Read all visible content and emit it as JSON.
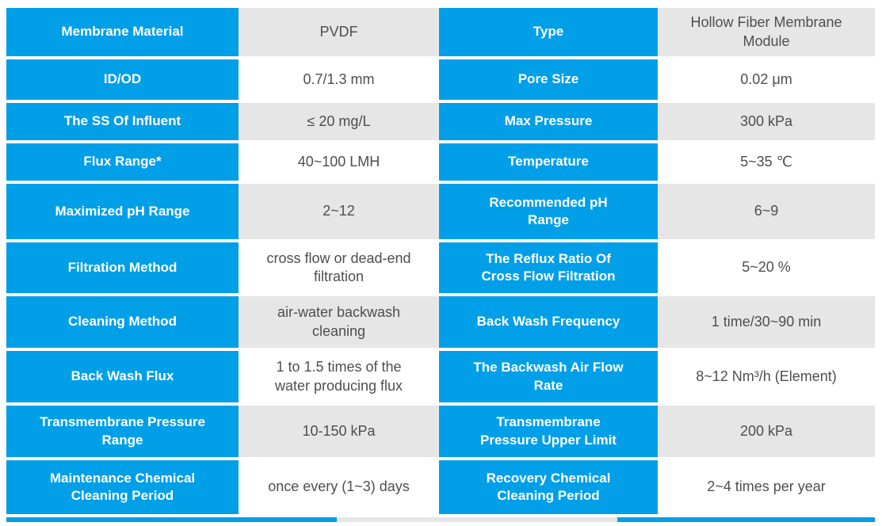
{
  "colors": {
    "header_bg": "#019FE8",
    "header_text": "#FFFFFF",
    "alt_value_bg": "#E6E6E6",
    "value_bg": "#FFFFFF",
    "value_text": "#4E4E51",
    "row_gap": "#FFFFFF"
  },
  "rows": [
    [
      "Membrane Material",
      "PVDF",
      "Type",
      "Hollow Fiber Membrane\nModule"
    ],
    [
      "ID/OD",
      "0.7/1.3 mm",
      "Pore Size",
      "0.02 μm"
    ],
    [
      "The SS Of Influent",
      "≤ 20 mg/L",
      "Max Pressure",
      "300 kPa"
    ],
    [
      "Flux Range*",
      "40~100 LMH",
      "Temperature",
      "5~35 ℃"
    ],
    [
      "Maximized pH Range",
      "2~12",
      "Recommended pH\nRange",
      "6~9"
    ],
    [
      "Filtration Method",
      "cross flow or dead-end\nfiltration",
      "The Reflux Ratio Of\nCross Flow Filtration",
      "5~20 %"
    ],
    [
      "Cleaning Method",
      "air-water backwash\ncleaning",
      "Back Wash Frequency",
      "1 time/30~90 min"
    ],
    [
      "Back Wash Flux",
      "1 to 1.5 times of the\nwater producing flux",
      "The Backwash Air Flow\nRate",
      "8~12 Nm³/h (Element)"
    ],
    [
      "Transmembrane Pressure\nRange",
      "10-150 kPa",
      "Transmembrane\nPressure Upper Limit",
      "200 kPa"
    ],
    [
      "Maintenance Chemical\nCleaning Period",
      "once every (1~3) days",
      "Recovery Chemical\nCleaning Period",
      "2~4 times per year"
    ]
  ]
}
